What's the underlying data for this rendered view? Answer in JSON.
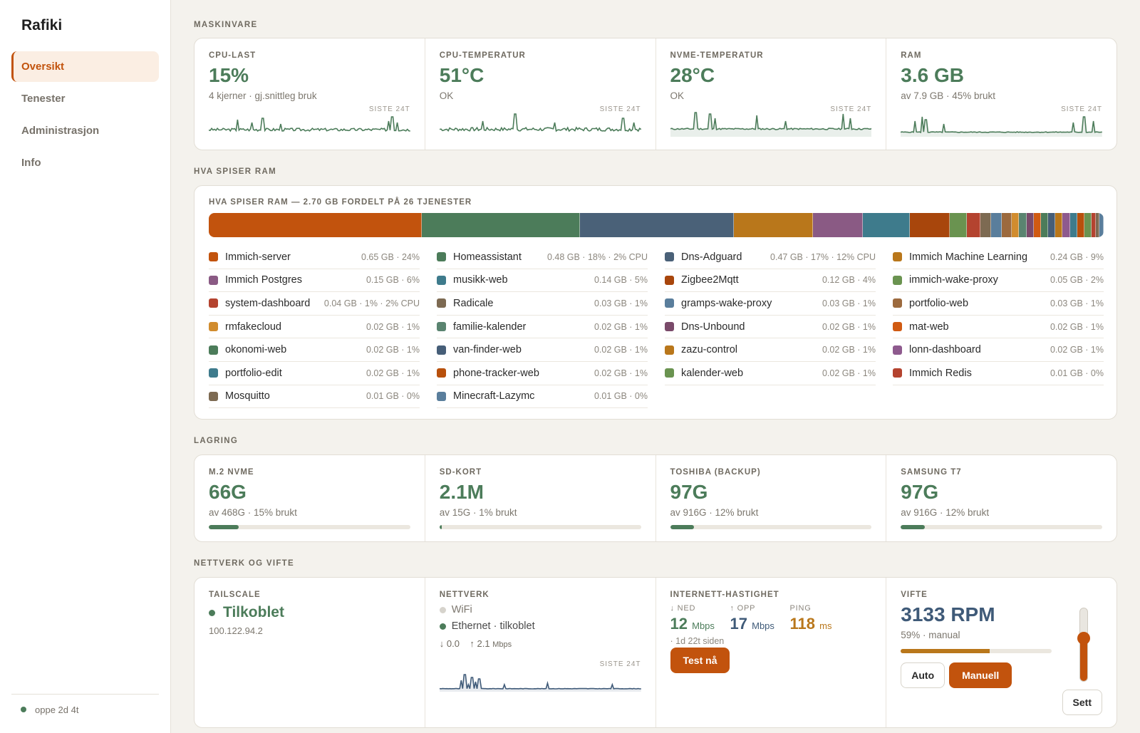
{
  "app": {
    "brand": "Rafiki"
  },
  "nav": {
    "items": [
      {
        "label": "Oversikt",
        "active": true
      },
      {
        "label": "Tenester",
        "active": false
      },
      {
        "label": "Administrasjon",
        "active": false
      },
      {
        "label": "Info",
        "active": false
      }
    ]
  },
  "footer": {
    "uptime": "oppe 2d 4t"
  },
  "sections": {
    "hardware": "MASKINVARE",
    "ram": "HVA SPISER RAM",
    "storage": "LAGRING",
    "network": "NETTVERK OG VIFTE"
  },
  "spark_tag": "SISTE 24T",
  "hardware": [
    {
      "label": "CPU-LAST",
      "value": "15%",
      "sub": "4 kjerner · gj.snittleg bruk"
    },
    {
      "label": "CPU-TEMPERATUR",
      "value": "51°C",
      "sub": "OK"
    },
    {
      "label": "NVME-TEMPERATUR",
      "value": "28°C",
      "sub": "OK"
    },
    {
      "label": "RAM",
      "value": "3.6 GB",
      "sub": "av 7.9 GB  ·  45% brukt"
    }
  ],
  "ram": {
    "title": "HVA SPISER RAM — 2.70 GB FORDELT PÅ 26 TJENESTER",
    "services": [
      {
        "name": "Immich-server",
        "info": "0.65 GB · 24%",
        "gb": 0.65,
        "color": "#c2530d"
      },
      {
        "name": "Homeassistant",
        "info": "0.48 GB · 18% · 2% CPU",
        "gb": 0.48,
        "color": "#4c7c5a"
      },
      {
        "name": "Dns-Adguard",
        "info": "0.47 GB · 17% · 12% CPU",
        "gb": 0.47,
        "color": "#4a6178"
      },
      {
        "name": "Immich Machine Learning",
        "info": "0.24 GB · 9%",
        "gb": 0.24,
        "color": "#b9771b"
      },
      {
        "name": "Immich Postgres",
        "info": "0.15 GB · 6%",
        "gb": 0.15,
        "color": "#8a5a84"
      },
      {
        "name": "musikk-web",
        "info": "0.14 GB · 5%",
        "gb": 0.14,
        "color": "#3e7b8c"
      },
      {
        "name": "Zigbee2Mqtt",
        "info": "0.12 GB · 4%",
        "gb": 0.12,
        "color": "#a8460c"
      },
      {
        "name": "immich-wake-proxy",
        "info": "0.05 GB · 2%",
        "gb": 0.05,
        "color": "#6a9350"
      },
      {
        "name": "system-dashboard",
        "info": "0.04 GB · 1% · 2% CPU",
        "gb": 0.04,
        "color": "#b4432f"
      },
      {
        "name": "Radicale",
        "info": "0.03 GB · 1%",
        "gb": 0.03,
        "color": "#7d6a52"
      },
      {
        "name": "gramps-wake-proxy",
        "info": "0.03 GB · 1%",
        "gb": 0.03,
        "color": "#5a7e9c"
      },
      {
        "name": "portfolio-web",
        "info": "0.03 GB · 1%",
        "gb": 0.03,
        "color": "#9c6a3e"
      },
      {
        "name": "rmfakecloud",
        "info": "0.02 GB · 1%",
        "gb": 0.02,
        "color": "#d18c2e"
      },
      {
        "name": "familie-kalender",
        "info": "0.02 GB · 1%",
        "gb": 0.02,
        "color": "#5a8470"
      },
      {
        "name": "Dns-Unbound",
        "info": "0.02 GB · 1%",
        "gb": 0.02,
        "color": "#7a4a6a"
      },
      {
        "name": "mat-web",
        "info": "0.02 GB · 1%",
        "gb": 0.02,
        "color": "#d05a12"
      },
      {
        "name": "okonomi-web",
        "info": "0.02 GB · 1%",
        "gb": 0.02,
        "color": "#4c7c5a"
      },
      {
        "name": "van-finder-web",
        "info": "0.02 GB · 1%",
        "gb": 0.02,
        "color": "#465e78"
      },
      {
        "name": "zazu-control",
        "info": "0.02 GB · 1%",
        "gb": 0.02,
        "color": "#b9771b"
      },
      {
        "name": "lonn-dashboard",
        "info": "0.02 GB · 1%",
        "gb": 0.02,
        "color": "#8e5a8e"
      },
      {
        "name": "portfolio-edit",
        "info": "0.02 GB · 1%",
        "gb": 0.02,
        "color": "#3e7b8c"
      },
      {
        "name": "phone-tracker-web",
        "info": "0.02 GB · 1%",
        "gb": 0.02,
        "color": "#b8500c"
      },
      {
        "name": "kalender-web",
        "info": "0.02 GB · 1%",
        "gb": 0.02,
        "color": "#6a9350"
      },
      {
        "name": "Immich Redis",
        "info": "0.01 GB · 0%",
        "gb": 0.01,
        "color": "#b4432f"
      },
      {
        "name": "Mosquitto",
        "info": "0.01 GB · 0%",
        "gb": 0.01,
        "color": "#7d6a52"
      },
      {
        "name": "Minecraft-Lazymc",
        "info": "0.01 GB · 0%",
        "gb": 0.01,
        "color": "#5a7e9c"
      }
    ]
  },
  "storage": [
    {
      "label": "M.2 NVME",
      "value": "66G",
      "sub": "av 468G  ·  15% brukt",
      "pct": 15
    },
    {
      "label": "SD-KORT",
      "value": "2.1M",
      "sub": "av 15G  ·  1% brukt",
      "pct": 1
    },
    {
      "label": "TOSHIBA (BACKUP)",
      "value": "97G",
      "sub": "av 916G  ·  12% brukt",
      "pct": 12
    },
    {
      "label": "SAMSUNG T7",
      "value": "97G",
      "sub": "av 916G  ·  12% brukt",
      "pct": 12
    }
  ],
  "tailscale": {
    "label": "TAILSCALE",
    "status": "Tilkoblet",
    "ip": "100.122.94.2"
  },
  "network": {
    "label": "NETTVERK",
    "wifi": "WiFi",
    "ethernet": "Ethernet  ·  tilkoblet",
    "down": "↓ 0.0",
    "up": "↑ 2.1",
    "unit": "Mbps"
  },
  "speed": {
    "label": "INTERNETT-HASTIGHET",
    "down_label": "↓ NED",
    "down_value": "12",
    "down_unit": "Mbps",
    "up_label": "↑ OPP",
    "up_value": "17",
    "up_unit": "Mbps",
    "ping_label": "PING",
    "ping_value": "118",
    "ping_unit": "ms",
    "ago": "· 1d 22t siden",
    "button": "Test nå"
  },
  "fan": {
    "label": "VIFTE",
    "rpm": "3133 RPM",
    "sub": "59%  ·  manual",
    "pct": 59,
    "auto": "Auto",
    "manual": "Manuell",
    "set": "Sett"
  },
  "colors": {
    "accent": "#c2530d",
    "green": "#4c7c5a",
    "slate": "#3f5a78",
    "amber": "#b9771b"
  }
}
